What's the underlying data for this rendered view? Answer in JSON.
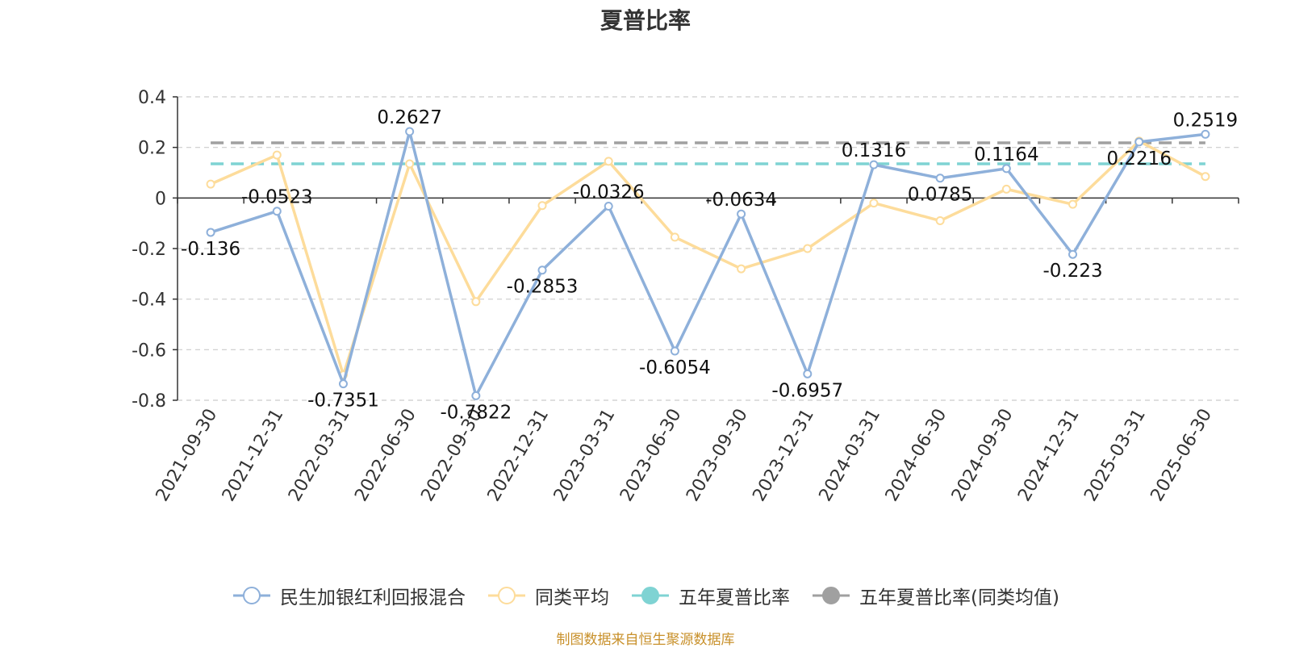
{
  "chart_data": {
    "type": "line",
    "title": "夏普比率",
    "categories": [
      "2021-09-30",
      "2021-12-31",
      "2022-03-31",
      "2022-06-30",
      "2022-09-30",
      "2022-12-31",
      "2023-03-31",
      "2023-06-30",
      "2023-09-30",
      "2023-12-31",
      "2024-03-31",
      "2024-06-30",
      "2024-09-30",
      "2024-12-31",
      "2025-03-31",
      "2025-06-30"
    ],
    "ylim": [
      -0.8,
      0.4
    ],
    "yticks": [
      0.4,
      0.2,
      0,
      -0.2,
      -0.4,
      -0.6,
      -0.8
    ],
    "grid": true,
    "legend_position": "bottom",
    "series": [
      {
        "name": "民生加银红利回报混合",
        "color": "#8eb0da",
        "values": [
          -0.136,
          -0.0523,
          -0.7351,
          0.2627,
          -0.7822,
          -0.2853,
          -0.0326,
          -0.6054,
          -0.0634,
          -0.6957,
          0.1316,
          0.0785,
          0.1164,
          -0.223,
          0.2216,
          0.2519
        ],
        "labels": [
          "-0.136",
          "-0.0523",
          "-0.7351",
          "0.2627",
          "-0.7822",
          "-0.2853",
          "-0.0326",
          "-0.6054",
          "-0.0634",
          "-0.6957",
          "0.1316",
          "0.0785",
          "0.1164",
          "-0.223",
          "0.2216",
          "0.2519"
        ]
      },
      {
        "name": "同类平均",
        "color": "#fddc9b",
        "values": [
          0.055,
          0.17,
          -0.7,
          0.135,
          -0.41,
          -0.03,
          0.145,
          -0.155,
          -0.28,
          -0.2,
          -0.02,
          -0.09,
          0.035,
          -0.025,
          0.225,
          0.085
        ]
      }
    ],
    "reference_lines": [
      {
        "name": "五年夏普比率",
        "color": "#7fd3d3",
        "value": 0.135
      },
      {
        "name": "五年夏普比率(同类均值)",
        "color": "#a0a0a0",
        "value": 0.218
      }
    ],
    "source_note": "制图数据来自恒生聚源数据库"
  }
}
